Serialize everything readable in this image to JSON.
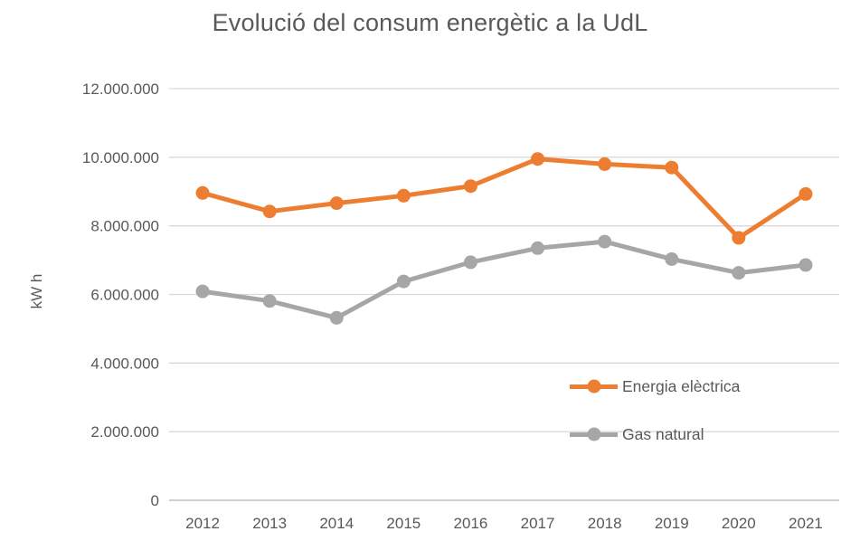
{
  "chart_data": {
    "type": "line",
    "title": "Evolució del consum energètic a la UdL",
    "ylabel": "kW h",
    "xlabel": "",
    "categories": [
      "2012",
      "2013",
      "2014",
      "2015",
      "2016",
      "2017",
      "2018",
      "2019",
      "2020",
      "2021"
    ],
    "series": [
      {
        "name": "Energia elèctrica",
        "color": "#ED7D31",
        "values": [
          8960000,
          8420000,
          8660000,
          8880000,
          9160000,
          9950000,
          9800000,
          9700000,
          7650000,
          8930000
        ]
      },
      {
        "name": "Gas natural",
        "color": "#A6A6A6",
        "values": [
          6090000,
          5810000,
          5320000,
          6380000,
          6940000,
          7350000,
          7540000,
          7030000,
          6630000,
          6860000
        ]
      }
    ],
    "ylim": [
      0,
      12000000
    ],
    "y_ticks": [
      {
        "value": 0,
        "label": "0"
      },
      {
        "value": 2000000,
        "label": "2.000.000"
      },
      {
        "value": 4000000,
        "label": "4.000.000"
      },
      {
        "value": 6000000,
        "label": "6.000.000"
      },
      {
        "value": 8000000,
        "label": "8.000.000"
      },
      {
        "value": 10000000,
        "label": "10.000.000"
      },
      {
        "value": 12000000,
        "label": "12.000.000"
      }
    ],
    "grid": "horizontal",
    "legend_position": "inside-right"
  },
  "style": {
    "text_color": "#595959",
    "gridline_color": "#D9D9D9",
    "axis_line_color": "#BFBFBF"
  }
}
